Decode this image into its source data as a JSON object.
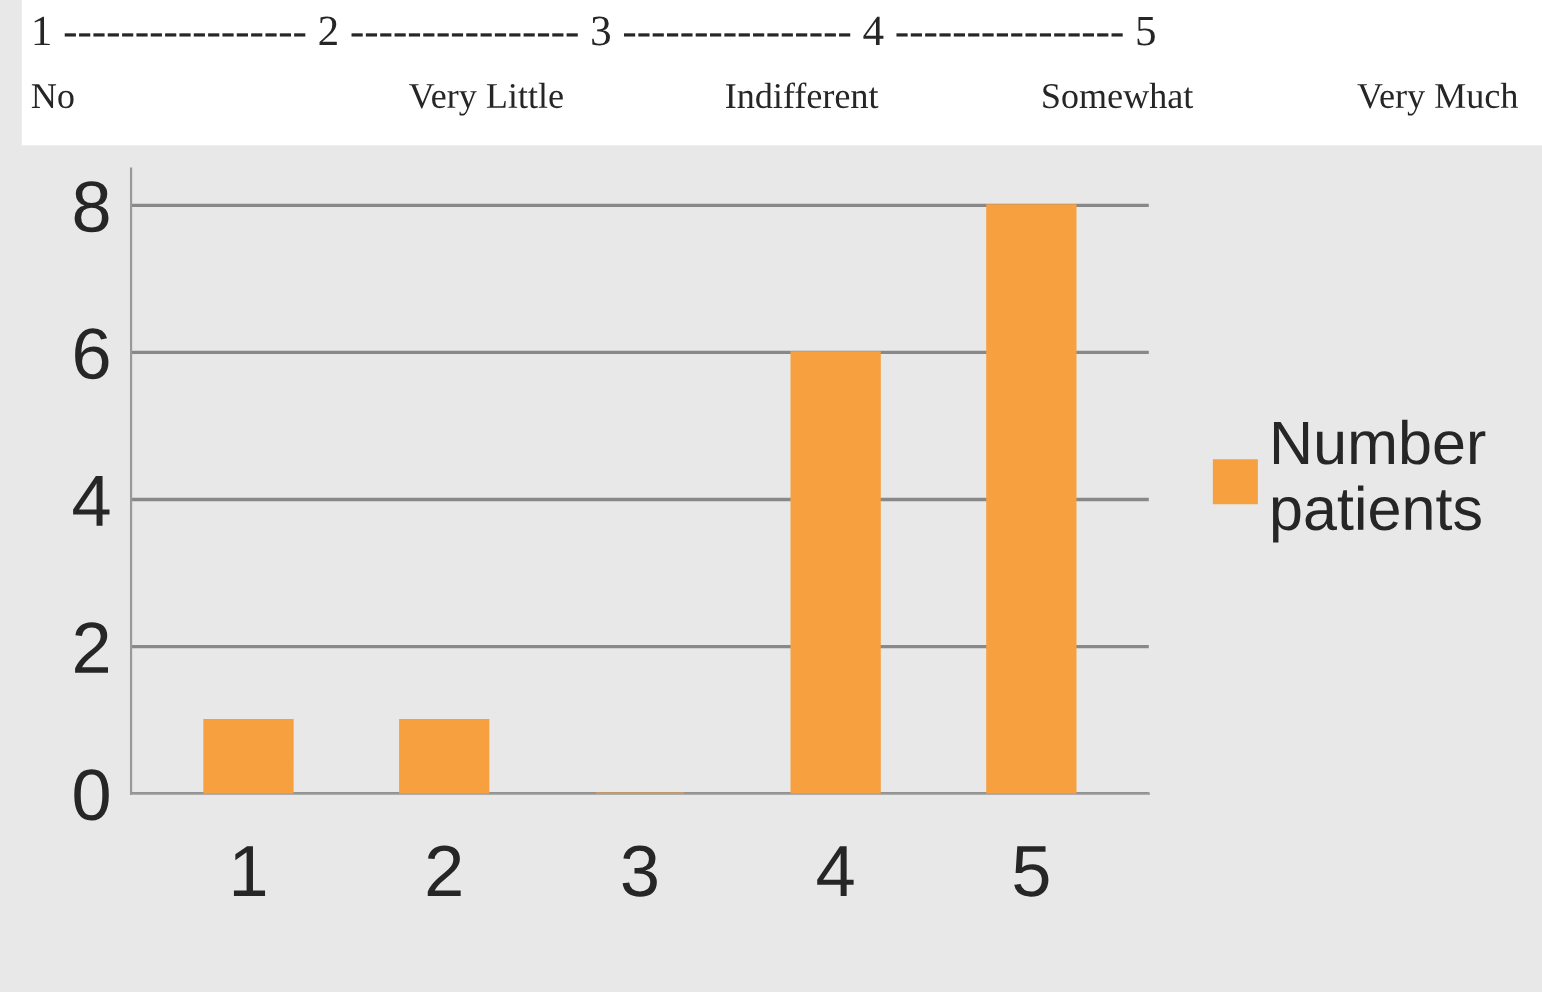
{
  "chart_data": {
    "type": "bar",
    "title": "1 ----------------- 2 ---------------- 3 ---------------- 4 ---------------- 5",
    "annotations": [
      "No",
      "Very Little",
      "Indifferent",
      "Somewhat",
      "Very Much"
    ],
    "categories": [
      "1",
      "2",
      "3",
      "4",
      "5"
    ],
    "series": [
      {
        "name": "Number patients",
        "color": "#f7a040",
        "values": [
          1,
          1,
          0,
          6,
          8
        ]
      }
    ],
    "ylim": [
      0,
      8.5
    ],
    "yticks": [
      0,
      2,
      4,
      6,
      8
    ],
    "grid": "y",
    "legend": "right"
  }
}
